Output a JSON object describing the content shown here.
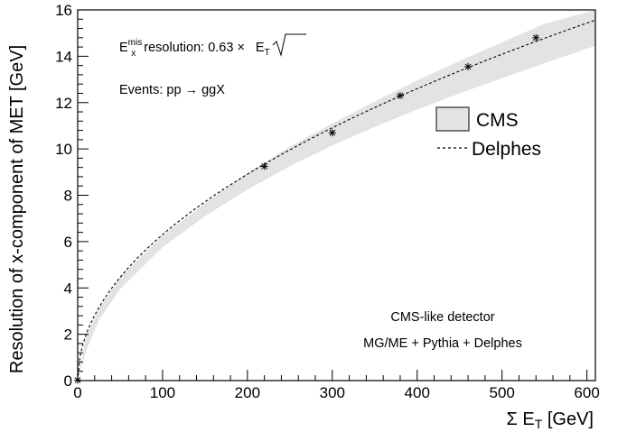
{
  "chart_data": {
    "type": "line",
    "title": "",
    "xlabel": "Σ E_T [GeV]",
    "xlabel_parts": {
      "main": "Σ E",
      "sub": "T",
      "unit": " [GeV]"
    },
    "ylabel": "Resolution of x-component  of MET [GeV]",
    "xlim": [
      0,
      610
    ],
    "ylim": [
      0,
      16
    ],
    "x_ticks": [
      0,
      100,
      200,
      300,
      400,
      500,
      600
    ],
    "y_ticks": [
      0,
      2,
      4,
      6,
      8,
      10,
      12,
      14,
      16
    ],
    "grid": false,
    "legend_position": "right",
    "series": [
      {
        "name": "CMS",
        "kind": "band",
        "color": "#e3e3e3",
        "x": [
          0,
          10,
          25,
          50,
          100,
          150,
          200,
          250,
          300,
          350,
          400,
          450,
          500,
          550,
          610
        ],
        "y_low": [
          0,
          1.3,
          2.6,
          3.95,
          5.75,
          7.1,
          8.25,
          9.25,
          10.15,
          10.95,
          11.7,
          12.4,
          13.05,
          13.7,
          14.45
        ],
        "y_high": [
          0,
          1.9,
          3.1,
          4.45,
          6.25,
          7.65,
          8.95,
          10.1,
          11.1,
          12.05,
          12.95,
          13.8,
          14.6,
          15.4,
          16.0
        ]
      },
      {
        "name": "Delphes",
        "kind": "dashed-line",
        "color": "#000000",
        "function_coefficient": 0.63
      },
      {
        "name": "",
        "kind": "markers",
        "marker": "star",
        "color": "#000000",
        "x": [
          0,
          220,
          300,
          380,
          460,
          540
        ],
        "y": [
          0.02,
          9.25,
          10.7,
          12.3,
          13.55,
          14.8
        ]
      }
    ],
    "annotations": {
      "formula": {
        "e": "E",
        "sup": "mis",
        "sub": "x",
        "text": " resolution: 0.63 ×",
        "root_e": "E",
        "root_sub": "T"
      },
      "events": "Events: pp → ggX",
      "detector": "CMS-like detector",
      "generator": "MG/ME + Pythia + Delphes"
    }
  }
}
